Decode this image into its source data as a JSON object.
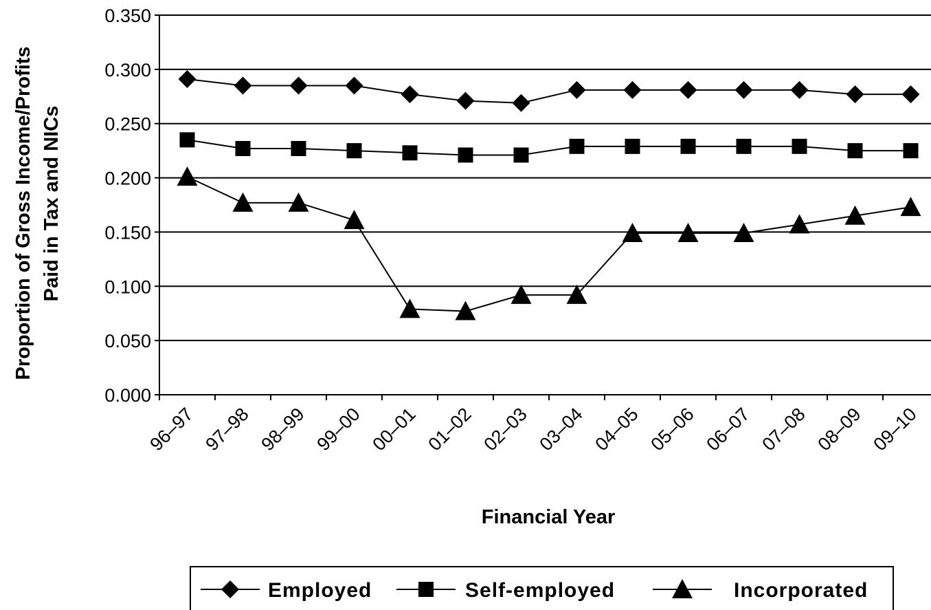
{
  "chart_data": {
    "type": "line",
    "title": "",
    "xlabel": "Financial Year",
    "ylabel_lines": [
      "Proportion of Gross Income/Profits",
      "Paid in Tax and NICs"
    ],
    "categories": [
      "96–97",
      "97–98",
      "98–99",
      "99–00",
      "00–01",
      "01–02",
      "02–03",
      "03–04",
      "04–05",
      "05–06",
      "06–07",
      "07–08",
      "08–09",
      "09–10"
    ],
    "ylim": [
      0,
      0.35
    ],
    "yticks": [
      "0.000",
      "0.050",
      "0.100",
      "0.150",
      "0.200",
      "0.250",
      "0.300",
      "0.350"
    ],
    "grid": "horizontal",
    "legend_position": "bottom",
    "series": [
      {
        "name": "Employed",
        "marker": "diamond",
        "values": [
          0.291,
          0.285,
          0.285,
          0.285,
          0.277,
          0.271,
          0.269,
          0.281,
          0.281,
          0.281,
          0.281,
          0.281,
          0.277,
          0.277
        ]
      },
      {
        "name": "Self-employed",
        "marker": "square",
        "values": [
          0.235,
          0.227,
          0.227,
          0.225,
          0.223,
          0.221,
          0.221,
          0.229,
          0.229,
          0.229,
          0.229,
          0.229,
          0.225,
          0.225
        ]
      },
      {
        "name": "Incorporated",
        "marker": "triangle",
        "values": [
          0.201,
          0.177,
          0.177,
          0.161,
          0.079,
          0.077,
          0.092,
          0.092,
          0.149,
          0.149,
          0.149,
          0.157,
          0.165,
          0.173
        ]
      }
    ],
    "colors": {
      "line": "#000000",
      "grid": "#000000",
      "background": "#ffffff"
    }
  }
}
